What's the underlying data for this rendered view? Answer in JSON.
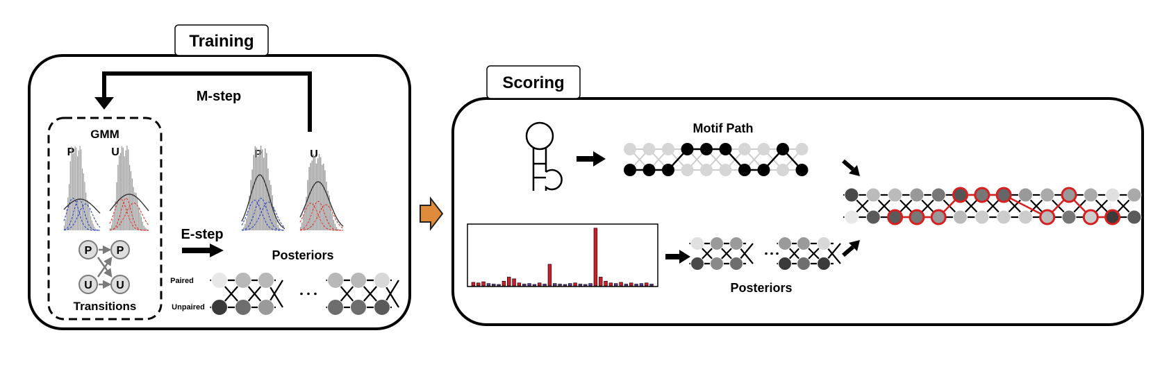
{
  "training": {
    "title": "Training",
    "m_step": "M-step",
    "e_step": "E-step",
    "gmm": {
      "label": "GMM",
      "paired_short": "P",
      "unpaired_short": "U"
    },
    "transitions": {
      "label": "Transitions",
      "paired_node": "P",
      "unpaired_node": "U"
    },
    "fitted": {
      "paired_short": "P",
      "unpaired_short": "U"
    },
    "posteriors": {
      "label": "Posteriors",
      "row_paired": "Paired",
      "row_unpaired": "Unpaired"
    }
  },
  "scoring": {
    "title": "Scoring",
    "motif_path": "Motif Path",
    "posteriors": "Posteriors"
  },
  "colors": {
    "paired_component": "#3a4fc4",
    "unpaired_component": "#d8443a",
    "hist_bar": "#9a9a9a",
    "profile_bar": "#c8202a",
    "profile_bar_low": "#5a3a8a",
    "motif_highlight": "#d81e1e",
    "stage_arrow": "#e08a3c",
    "stage_arrow_edge": "#222222"
  },
  "shading": {
    "left_posteriors_top": [
      "#e8e8e8",
      "#b8b8b8",
      "#b8b8b8",
      "#b8b8b8",
      "#b8b8b8",
      "#d8d8d8"
    ],
    "left_posteriors_bottom": [
      "#3a3a3a",
      "#6e6e6e",
      "#9a9a9a",
      "#6e6e6e",
      "#6e6e6e",
      "#5a5a5a"
    ],
    "score_posteriors_top": [
      "#e0e0e0",
      "#9a9a9a",
      "#9a9a9a",
      "#9a9a9a",
      "#9a9a9a",
      "#d8d8d8"
    ],
    "score_posteriors_bottom": [
      "#4a4a4a",
      "#8a8a8a",
      "#6e6e6e",
      "#3a3a3a",
      "#6e6e6e",
      "#3a3a3a"
    ],
    "motif_top_filled": [
      false,
      false,
      false,
      true,
      true,
      true,
      false,
      false,
      true,
      false
    ],
    "motif_bottom_filled": [
      true,
      true,
      true,
      false,
      false,
      false,
      true,
      true,
      false,
      true
    ],
    "result_top": [
      "#4a4a4a",
      "#bbbbbb",
      "#bbbbbb",
      "#999999",
      "#777777",
      "#555555",
      "#777777",
      "#666666",
      "#999999",
      "#aaaaaa",
      "#999999",
      "#aaaaaa",
      "#e0e0e0",
      "#aaaaaa"
    ],
    "result_bottom": [
      "#e8e8e8",
      "#5a5a5a",
      "#5a5a5a",
      "#777777",
      "#999999",
      "#bbbbbb",
      "#cccccc",
      "#cccccc",
      "#cccccc",
      "#bbbbbb",
      "#777777",
      "#cccccc",
      "#3a3a3a",
      "#5a5a5a"
    ],
    "result_top_motif": [
      false,
      false,
      false,
      false,
      false,
      true,
      true,
      true,
      false,
      false,
      true,
      false,
      false,
      false
    ],
    "result_bottom_motif": [
      false,
      false,
      true,
      true,
      true,
      false,
      false,
      false,
      false,
      true,
      false,
      true,
      true,
      false
    ]
  },
  "reactivity_profile": [
    0.06,
    0.05,
    0.07,
    0.04,
    0.03,
    0.02,
    0.08,
    0.15,
    0.12,
    0.05,
    0.03,
    0.04,
    0.02,
    0.05,
    0.03,
    0.37,
    0.04,
    0.03,
    0.02,
    0.04,
    0.05,
    0.03,
    0.02,
    0.04,
    0.99,
    0.15,
    0.08,
    0.05,
    0.04,
    0.06,
    0.03,
    0.05,
    0.03,
    0.04,
    0.05,
    0.03
  ]
}
